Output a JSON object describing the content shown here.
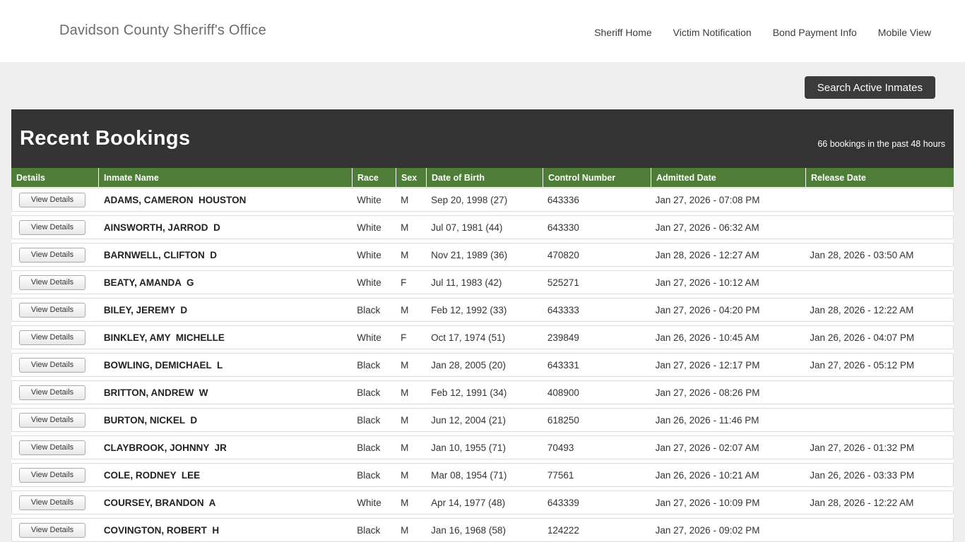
{
  "colors": {
    "accent_green": "#4e7d38",
    "bar_dark": "#333333",
    "button_dark": "#3b3b3b",
    "page_gray": "#efefef"
  },
  "header": {
    "title": "Davidson County Sheriff's Office",
    "nav": [
      "Sheriff Home",
      "Victim Notification",
      "Bond Payment Info",
      "Mobile View"
    ]
  },
  "toolbar": {
    "search_button_label": "Search Active Inmates"
  },
  "bookings": {
    "title": "Recent Bookings",
    "count_text": "66 bookings in the past 48 hours"
  },
  "table": {
    "view_details_label": "View Details",
    "columns": [
      "Details",
      "Inmate Name",
      "Race",
      "Sex",
      "Date of Birth",
      "Control Number",
      "Admitted Date",
      "Release Date"
    ],
    "rows": [
      {
        "name": "ADAMS, CAMERON  HOUSTON",
        "race": "White",
        "sex": "M",
        "dob": "Sep 20, 1998 (27)",
        "control_number": "643336",
        "admitted": "Jan 27, 2026 - 07:08 PM",
        "released": ""
      },
      {
        "name": "AINSWORTH, JARROD  D",
        "race": "White",
        "sex": "M",
        "dob": "Jul 07, 1981 (44)",
        "control_number": "643330",
        "admitted": "Jan 27, 2026 - 06:32 AM",
        "released": ""
      },
      {
        "name": "BARNWELL, CLIFTON  D",
        "race": "White",
        "sex": "M",
        "dob": "Nov 21, 1989 (36)",
        "control_number": "470820",
        "admitted": "Jan 28, 2026 - 12:27 AM",
        "released": "Jan 28, 2026 - 03:50 AM"
      },
      {
        "name": "BEATY, AMANDA  G",
        "race": "White",
        "sex": "F",
        "dob": "Jul 11, 1983 (42)",
        "control_number": "525271",
        "admitted": "Jan 27, 2026 - 10:12 AM",
        "released": ""
      },
      {
        "name": "BILEY, JEREMY  D",
        "race": "Black",
        "sex": "M",
        "dob": "Feb 12, 1992 (33)",
        "control_number": "643333",
        "admitted": "Jan 27, 2026 - 04:20 PM",
        "released": "Jan 28, 2026 - 12:22 AM"
      },
      {
        "name": "BINKLEY, AMY  MICHELLE",
        "race": "White",
        "sex": "F",
        "dob": "Oct 17, 1974 (51)",
        "control_number": "239849",
        "admitted": "Jan 26, 2026 - 10:45 AM",
        "released": "Jan 26, 2026 - 04:07 PM"
      },
      {
        "name": "BOWLING, DEMICHAEL  L",
        "race": "Black",
        "sex": "M",
        "dob": "Jan 28, 2005 (20)",
        "control_number": "643331",
        "admitted": "Jan 27, 2026 - 12:17 PM",
        "released": "Jan 27, 2026 - 05:12 PM"
      },
      {
        "name": "BRITTON, ANDREW  W",
        "race": "Black",
        "sex": "M",
        "dob": "Feb 12, 1991 (34)",
        "control_number": "408900",
        "admitted": "Jan 27, 2026 - 08:26 PM",
        "released": ""
      },
      {
        "name": "BURTON, NICKEL  D",
        "race": "Black",
        "sex": "M",
        "dob": "Jun 12, 2004 (21)",
        "control_number": "618250",
        "admitted": "Jan 26, 2026 - 11:46 PM",
        "released": ""
      },
      {
        "name": "CLAYBROOK, JOHNNY  JR",
        "race": "Black",
        "sex": "M",
        "dob": "Jan 10, 1955 (71)",
        "control_number": "70493",
        "admitted": "Jan 27, 2026 - 02:07 AM",
        "released": "Jan 27, 2026 - 01:32 PM"
      },
      {
        "name": "COLE, RODNEY  LEE",
        "race": "Black",
        "sex": "M",
        "dob": "Mar 08, 1954 (71)",
        "control_number": "77561",
        "admitted": "Jan 26, 2026 - 10:21 AM",
        "released": "Jan 26, 2026 - 03:33 PM"
      },
      {
        "name": "COURSEY, BRANDON  A",
        "race": "White",
        "sex": "M",
        "dob": "Apr 14, 1977 (48)",
        "control_number": "643339",
        "admitted": "Jan 27, 2026 - 10:09 PM",
        "released": "Jan 28, 2026 - 12:22 AM"
      },
      {
        "name": "COVINGTON, ROBERT  H",
        "race": "Black",
        "sex": "M",
        "dob": "Jan 16, 1968 (58)",
        "control_number": "124222",
        "admitted": "Jan 27, 2026 - 09:02 PM",
        "released": ""
      }
    ]
  }
}
